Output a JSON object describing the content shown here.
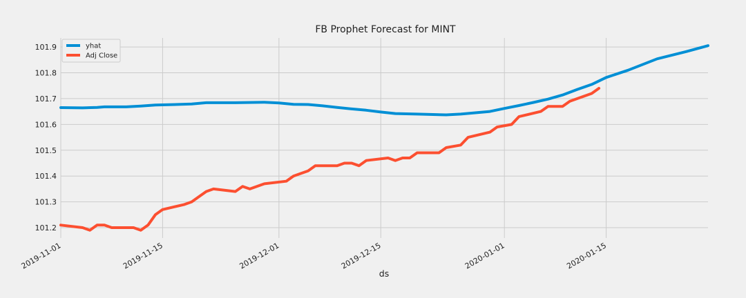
{
  "chart_data": {
    "type": "line",
    "title": "FB Prophet Forecast for MINT",
    "xlabel": "ds",
    "ylabel": "",
    "x_range": [
      "2019-11-01",
      "2020-01-29"
    ],
    "ylim": [
      101.16,
      101.935
    ],
    "x_ticks": [
      "2019-11-01",
      "2019-11-15",
      "2019-12-01",
      "2019-12-15",
      "2020-01-01",
      "2020-01-15"
    ],
    "y_ticks": [
      101.2,
      101.3,
      101.4,
      101.5,
      101.6,
      101.7,
      101.8,
      101.9
    ],
    "y_tick_labels": [
      "101.2",
      "101.3",
      "101.4",
      "101.5",
      "101.6",
      "101.7",
      "101.8",
      "101.9"
    ],
    "grid": true,
    "legend_position": "top-left",
    "series": [
      {
        "name": "yhat",
        "color": "#008fd5",
        "points": [
          [
            "2019-11-01",
            101.665
          ],
          [
            "2019-11-04",
            101.664
          ],
          [
            "2019-11-06",
            101.666
          ],
          [
            "2019-11-07",
            101.668
          ],
          [
            "2019-11-10",
            101.668
          ],
          [
            "2019-11-12",
            101.671
          ],
          [
            "2019-11-14",
            101.675
          ],
          [
            "2019-11-19",
            101.679
          ],
          [
            "2019-11-21",
            101.684
          ],
          [
            "2019-11-25",
            101.684
          ],
          [
            "2019-11-29",
            101.686
          ],
          [
            "2019-12-01",
            101.683
          ],
          [
            "2019-12-03",
            101.678
          ],
          [
            "2019-12-05",
            101.677
          ],
          [
            "2019-12-07",
            101.672
          ],
          [
            "2019-12-09",
            101.666
          ],
          [
            "2019-12-11",
            101.66
          ],
          [
            "2019-12-13",
            101.655
          ],
          [
            "2019-12-15",
            101.648
          ],
          [
            "2019-12-17",
            101.642
          ],
          [
            "2019-12-20",
            101.64
          ],
          [
            "2019-12-24",
            101.637
          ],
          [
            "2019-12-26",
            101.64
          ],
          [
            "2019-12-28",
            101.645
          ],
          [
            "2019-12-30",
            101.65
          ],
          [
            "2020-01-01",
            101.662
          ],
          [
            "2020-01-03",
            101.673
          ],
          [
            "2020-01-05",
            101.685
          ],
          [
            "2020-01-07",
            101.698
          ],
          [
            "2020-01-09",
            101.714
          ],
          [
            "2020-01-11",
            101.735
          ],
          [
            "2020-01-13",
            101.755
          ],
          [
            "2020-01-15",
            101.782
          ],
          [
            "2020-01-18",
            101.81
          ],
          [
            "2020-01-22",
            101.854
          ],
          [
            "2020-01-26",
            101.882
          ],
          [
            "2020-01-29",
            101.905
          ]
        ]
      },
      {
        "name": "Adj Close",
        "color": "#fc4f30",
        "points": [
          [
            "2019-11-01",
            101.21
          ],
          [
            "2019-11-04",
            101.2
          ],
          [
            "2019-11-05",
            101.19
          ],
          [
            "2019-11-06",
            101.21
          ],
          [
            "2019-11-07",
            101.21
          ],
          [
            "2019-11-08",
            101.2
          ],
          [
            "2019-11-11",
            101.2
          ],
          [
            "2019-11-12",
            101.19
          ],
          [
            "2019-11-13",
            101.21
          ],
          [
            "2019-11-14",
            101.25
          ],
          [
            "2019-11-15",
            101.27
          ],
          [
            "2019-11-18",
            101.29
          ],
          [
            "2019-11-19",
            101.3
          ],
          [
            "2019-11-20",
            101.32
          ],
          [
            "2019-11-21",
            101.34
          ],
          [
            "2019-11-22",
            101.35
          ],
          [
            "2019-11-25",
            101.34
          ],
          [
            "2019-11-26",
            101.36
          ],
          [
            "2019-11-27",
            101.35
          ],
          [
            "2019-11-29",
            101.37
          ],
          [
            "2019-12-02",
            101.38
          ],
          [
            "2019-12-03",
            101.4
          ],
          [
            "2019-12-04",
            101.41
          ],
          [
            "2019-12-05",
            101.42
          ],
          [
            "2019-12-06",
            101.44
          ],
          [
            "2019-12-09",
            101.44
          ],
          [
            "2019-12-10",
            101.45
          ],
          [
            "2019-12-11",
            101.45
          ],
          [
            "2019-12-12",
            101.44
          ],
          [
            "2019-12-13",
            101.46
          ],
          [
            "2019-12-16",
            101.47
          ],
          [
            "2019-12-17",
            101.46
          ],
          [
            "2019-12-18",
            101.47
          ],
          [
            "2019-12-19",
            101.47
          ],
          [
            "2019-12-20",
            101.49
          ],
          [
            "2019-12-23",
            101.49
          ],
          [
            "2019-12-24",
            101.51
          ],
          [
            "2019-12-26",
            101.52
          ],
          [
            "2019-12-27",
            101.55
          ],
          [
            "2019-12-30",
            101.57
          ],
          [
            "2019-12-31",
            101.59
          ],
          [
            "2020-01-02",
            101.6
          ],
          [
            "2020-01-03",
            101.63
          ],
          [
            "2020-01-06",
            101.65
          ],
          [
            "2020-01-07",
            101.67
          ],
          [
            "2020-01-08",
            101.67
          ],
          [
            "2020-01-09",
            101.67
          ],
          [
            "2020-01-10",
            101.69
          ],
          [
            "2020-01-13",
            101.72
          ],
          [
            "2020-01-14",
            101.74
          ]
        ]
      }
    ]
  }
}
